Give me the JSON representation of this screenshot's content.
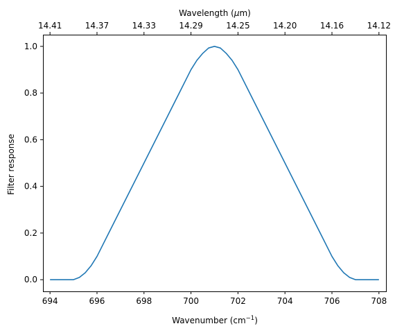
{
  "chart_data": {
    "type": "line",
    "xlabel": "Wavenumber (cm",
    "xlabel_sup": "−1",
    "xlabel_close": ")",
    "ylabel": "Filter response",
    "top_xlabel": "Wavelength (",
    "top_xlabel_mu": "μ",
    "top_xlabel_end": "m)",
    "xlim": [
      693.7,
      708.3
    ],
    "ylim": [
      -0.05,
      1.05
    ],
    "x_ticks": [
      694,
      696,
      698,
      700,
      702,
      704,
      706,
      708
    ],
    "x_tick_labels": [
      "694",
      "696",
      "698",
      "700",
      "702",
      "704",
      "706",
      "708"
    ],
    "y_ticks": [
      0.0,
      0.2,
      0.4,
      0.6,
      0.8,
      1.0
    ],
    "y_tick_labels": [
      "0.0",
      "0.2",
      "0.4",
      "0.6",
      "0.8",
      "1.0"
    ],
    "top_x_ticks": [
      694,
      696,
      698,
      700,
      702,
      704,
      706,
      708
    ],
    "top_x_tick_labels": [
      "14.41",
      "14.37",
      "14.33",
      "14.29",
      "14.25",
      "14.20",
      "14.16",
      "14.12"
    ],
    "grid": false,
    "series": [
      {
        "color": "#1f77b4",
        "x": [
          694.0,
          694.5,
          695.0,
          695.25,
          695.5,
          695.75,
          696.0,
          696.5,
          697.0,
          697.5,
          698.0,
          698.5,
          699.0,
          699.5,
          700.0,
          700.25,
          700.5,
          700.75,
          701.0,
          701.25,
          701.5,
          701.75,
          702.0,
          702.5,
          703.0,
          703.5,
          704.0,
          704.5,
          705.0,
          705.5,
          706.0,
          706.25,
          706.5,
          706.75,
          707.0,
          707.5,
          708.0
        ],
        "y": [
          0.0,
          0.0,
          0.0,
          0.01,
          0.03,
          0.06,
          0.1,
          0.2,
          0.3,
          0.4,
          0.5,
          0.6,
          0.7,
          0.8,
          0.9,
          0.94,
          0.97,
          0.993,
          1.0,
          0.993,
          0.97,
          0.94,
          0.9,
          0.8,
          0.7,
          0.6,
          0.5,
          0.4,
          0.3,
          0.2,
          0.1,
          0.06,
          0.03,
          0.01,
          0.0,
          0.0,
          0.0
        ]
      }
    ]
  }
}
